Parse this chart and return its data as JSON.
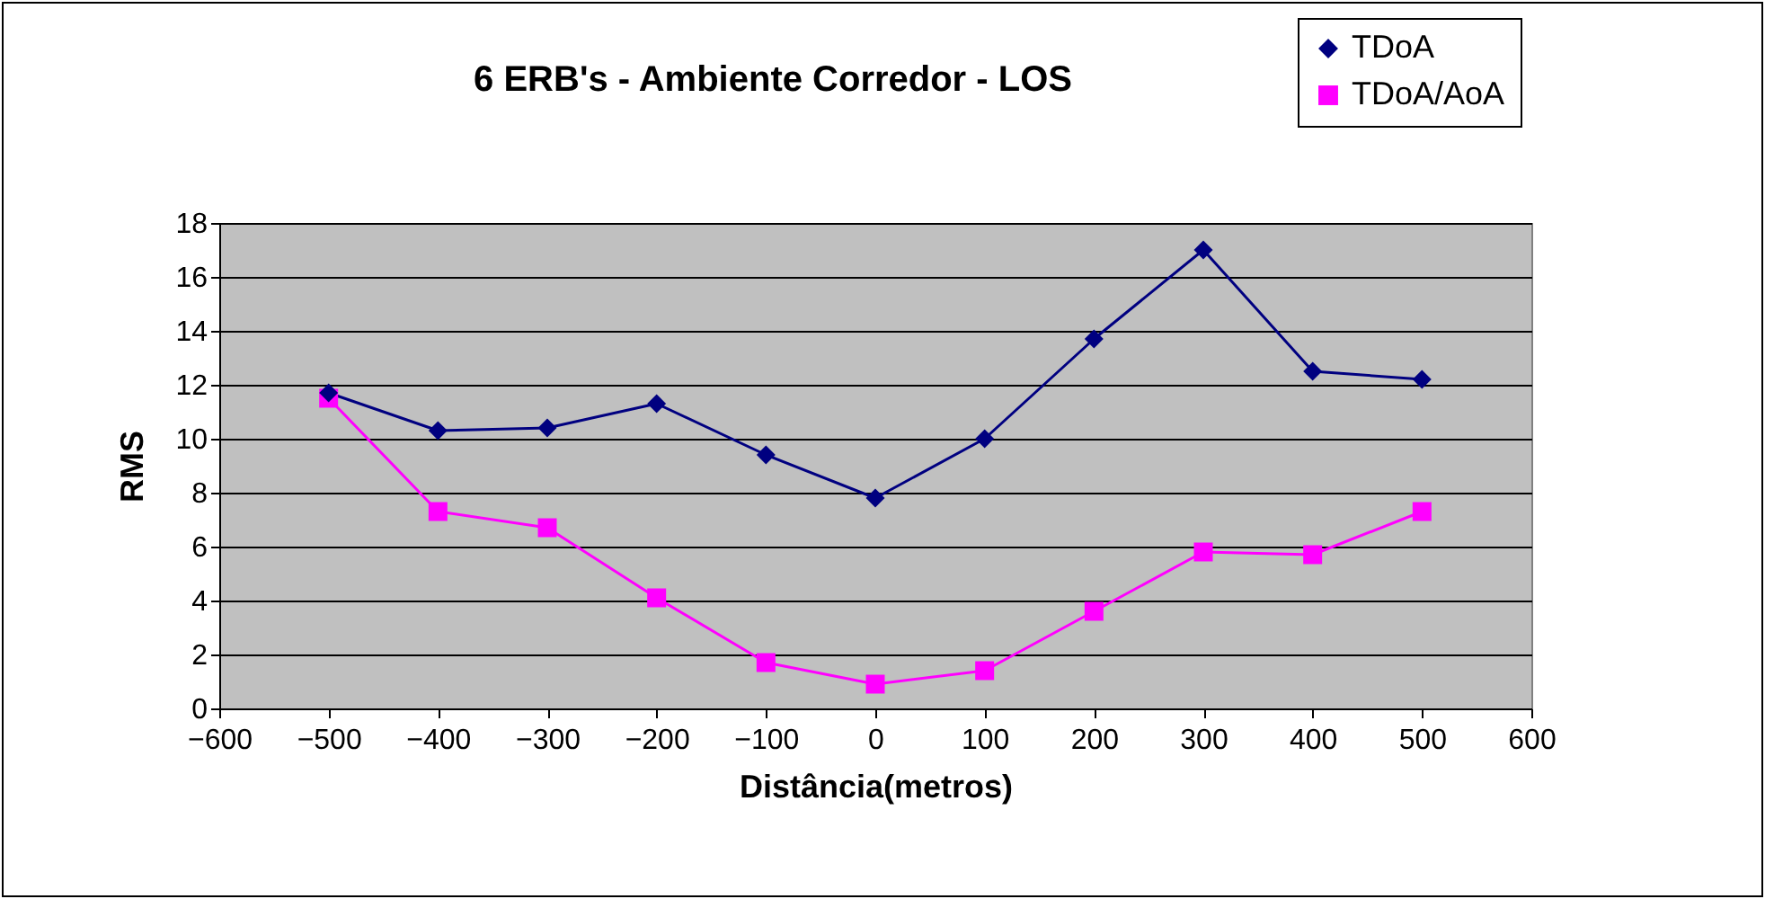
{
  "chart_data": {
    "type": "line",
    "title": "6 ERB's -  Ambiente Corredor - LOS",
    "xlabel": "Distância(metros)",
    "ylabel": "RMS",
    "x": [
      -500,
      -400,
      -300,
      -200,
      -100,
      0,
      100,
      200,
      300,
      400,
      500
    ],
    "series": [
      {
        "name": "TDoA",
        "color": "#000080",
        "marker": "diamond",
        "values": [
          11.7,
          10.3,
          10.4,
          11.3,
          9.4,
          7.8,
          10.0,
          13.7,
          17.0,
          12.5,
          12.2
        ]
      },
      {
        "name": "TDoA/AoA",
        "color": "#ff00ff",
        "marker": "square",
        "values": [
          11.5,
          7.3,
          6.7,
          4.1,
          1.7,
          0.9,
          1.4,
          3.6,
          5.8,
          5.7,
          7.3
        ]
      }
    ],
    "xlim": [
      -600,
      600
    ],
    "xticks": [
      -600,
      -500,
      -400,
      -300,
      -200,
      -100,
      0,
      100,
      200,
      300,
      400,
      500,
      600
    ],
    "ylim": [
      0,
      18
    ],
    "yticks": [
      0,
      2,
      4,
      6,
      8,
      10,
      12,
      14,
      16,
      18
    ],
    "grid": "y",
    "legend": "top right",
    "line_style": "solid"
  }
}
